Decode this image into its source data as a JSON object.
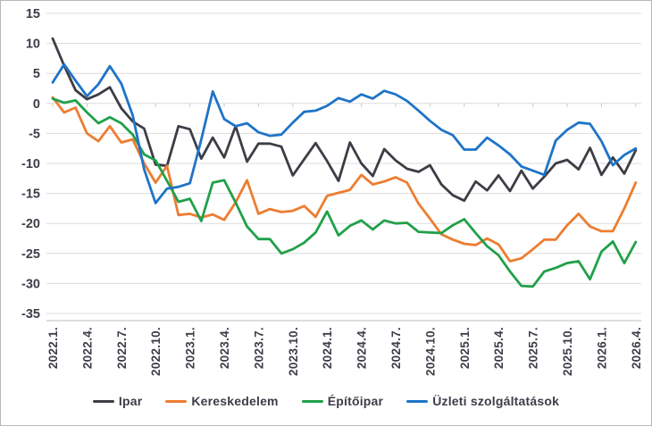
{
  "chart_data": {
    "type": "line",
    "title": "",
    "xlabel": "",
    "ylabel": "",
    "ylim": [
      -35,
      15
    ],
    "y_tick_step": 5,
    "y_tick_labels": [
      "15",
      "10",
      "5",
      "0",
      "-5",
      "-10",
      "-15",
      "-20",
      "-25",
      "-30",
      "-35"
    ],
    "grid": true,
    "legend_position": "bottom",
    "x_tick_labels": [
      "2022.1.",
      "2022.4.",
      "2022.7.",
      "2022.10.",
      "2023.1.",
      "2023.4.",
      "2023.7.",
      "2023.10.",
      "2024.1.",
      "2024.4.",
      "2024.7.",
      "2024.10.",
      "2025.1.",
      "2025.4.",
      "2025.7.",
      "2025.10.",
      "2026.1.",
      "2026.4."
    ],
    "x_label_every_n_points": 3,
    "x": [
      "2022.1.",
      "2022.2.",
      "2022.3.",
      "2022.4.",
      "2022.5.",
      "2022.6.",
      "2022.7.",
      "2022.8.",
      "2022.9.",
      "2022.10.",
      "2022.11.",
      "2022.12.",
      "2023.1.",
      "2023.2.",
      "2023.3.",
      "2023.4.",
      "2023.5.",
      "2023.6.",
      "2023.7.",
      "2023.8.",
      "2023.9.",
      "2023.10.",
      "2023.11.",
      "2023.12.",
      "2024.1.",
      "2024.2.",
      "2024.3.",
      "2024.4.",
      "2024.5.",
      "2024.6.",
      "2024.7.",
      "2024.8.",
      "2024.9.",
      "2024.10.",
      "2024.11.",
      "2024.12.",
      "2025.1.",
      "2025.2.",
      "2025.3.",
      "2025.4.",
      "2025.5.",
      "2025.6.",
      "2025.7.",
      "2025.8.",
      "2025.9.",
      "2025.10.",
      "2025.11.",
      "2025.12.",
      "2026.1.",
      "2026.2.",
      "2026.3.",
      "2026.4."
    ],
    "series": [
      {
        "name": "Ipar",
        "color": "#3d3d46",
        "values": [
          10.8,
          6.3,
          2.2,
          0.7,
          1.5,
          2.7,
          -0.8,
          -3.0,
          -4.2,
          -10.2,
          -10.4,
          -3.8,
          -4.3,
          -9.2,
          -5.7,
          -9.0,
          -3.8,
          -9.7,
          -6.7,
          -6.7,
          -7.2,
          -12.0,
          -9.3,
          -6.6,
          -9.6,
          -12.9,
          -6.5,
          -10.0,
          -12.1,
          -7.6,
          -9.5,
          -10.9,
          -11.4,
          -10.3,
          -13.5,
          -15.3,
          -16.2,
          -13.0,
          -14.5,
          -12.0,
          -14.6,
          -11.2,
          -14.2,
          -12.2,
          -10.0,
          -9.4,
          -11.0,
          -7.4,
          -11.9,
          -9.0,
          -11.7,
          -7.8
        ]
      },
      {
        "name": "Kereskedelem",
        "color": "#ed7d31",
        "values": [
          1.0,
          -1.5,
          -0.7,
          -5.0,
          -6.3,
          -3.8,
          -6.5,
          -6.0,
          -10.0,
          -13.2,
          -10.4,
          -18.6,
          -18.4,
          -19.0,
          -18.5,
          -19.4,
          -16.5,
          -12.8,
          -18.4,
          -17.6,
          -18.1,
          -17.9,
          -17.1,
          -18.9,
          -15.4,
          -14.9,
          -14.4,
          -11.9,
          -13.5,
          -13.0,
          -12.3,
          -13.2,
          -16.7,
          -19.2,
          -21.8,
          -22.7,
          -23.4,
          -23.6,
          -22.5,
          -23.5,
          -26.3,
          -25.8,
          -24.3,
          -22.7,
          -22.7,
          -20.3,
          -18.4,
          -20.5,
          -21.3,
          -21.3,
          -17.5,
          -13.2
        ]
      },
      {
        "name": "Építőipar",
        "color": "#21a04a",
        "values": [
          0.8,
          0.1,
          0.5,
          -1.5,
          -3.3,
          -2.3,
          -3.3,
          -5.2,
          -8.5,
          -9.5,
          -12.9,
          -16.4,
          -15.9,
          -19.6,
          -13.2,
          -12.8,
          -16.5,
          -20.5,
          -22.6,
          -22.6,
          -25.0,
          -24.3,
          -23.2,
          -21.5,
          -18.0,
          -22.0,
          -20.4,
          -19.5,
          -21.0,
          -19.5,
          -20.0,
          -19.9,
          -21.4,
          -21.5,
          -21.6,
          -20.3,
          -19.3,
          -21.6,
          -23.8,
          -25.3,
          -28.0,
          -30.4,
          -30.5,
          -28.0,
          -27.4,
          -26.6,
          -26.3,
          -29.3,
          -24.7,
          -23.0,
          -26.6,
          -23.1
        ]
      },
      {
        "name": "Üzleti szolgáltatások",
        "color": "#1e74c8",
        "values": [
          3.5,
          6.5,
          3.8,
          1.2,
          3.2,
          6.2,
          3.3,
          -2.0,
          -11.0,
          -16.6,
          -14.2,
          -13.9,
          -13.3,
          -6.0,
          2.0,
          -2.6,
          -3.8,
          -3.3,
          -4.8,
          -5.4,
          -5.2,
          -3.2,
          -1.4,
          -1.2,
          -0.4,
          0.9,
          0.3,
          1.5,
          0.8,
          2.1,
          1.5,
          0.4,
          -1.2,
          -2.9,
          -4.4,
          -5.3,
          -7.7,
          -7.7,
          -5.7,
          -7.0,
          -8.5,
          -10.5,
          -11.2,
          -11.9,
          -6.2,
          -4.4,
          -3.2,
          -3.4,
          -6.3,
          -10.3,
          -8.6,
          -7.5
        ]
      }
    ],
    "style": {
      "gridline_color": "#dcdcdc",
      "axis_line_color": "#c9c9c9",
      "tick_color": "#c9c9c9",
      "label_color": "#3d3d49",
      "background": "#ffffff"
    }
  },
  "legend": {
    "items": [
      {
        "label": "Ipar"
      },
      {
        "label": "Kereskedelem"
      },
      {
        "label": "Építőipar"
      },
      {
        "label": "Üzleti szolgáltatások"
      }
    ]
  }
}
